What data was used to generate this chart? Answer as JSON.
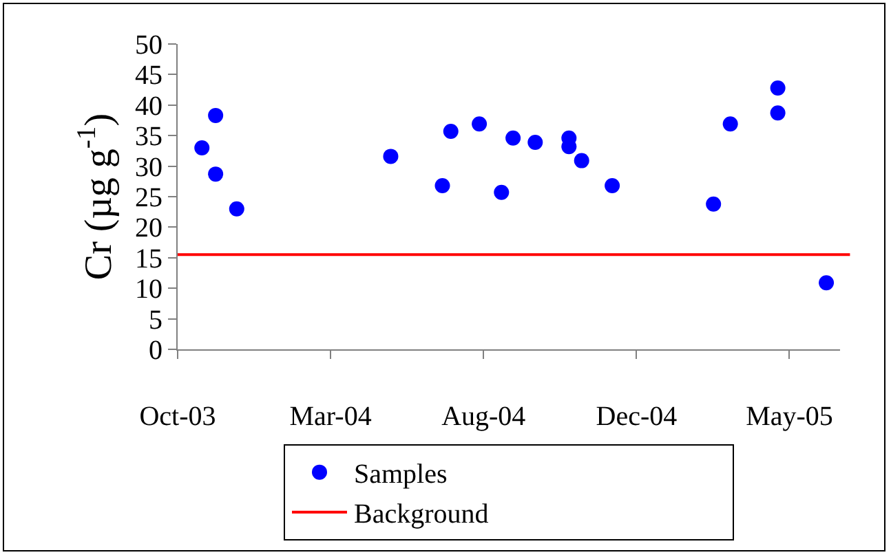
{
  "chart_data": {
    "type": "scatter",
    "ylabel": "Cr (µg g$^{-1}$)",
    "x": [
      "2003-11-12",
      "2003-11-25",
      "2003-11-25",
      "2003-12-15",
      "2004-05-09",
      "2004-06-27",
      "2004-07-05",
      "2004-08-01",
      "2004-08-22",
      "2004-09-02",
      "2004-09-23",
      "2004-10-25",
      "2004-10-25",
      "2004-11-06",
      "2004-12-05",
      "2005-03-11",
      "2005-03-27",
      "2005-05-11",
      "2005-05-11",
      "2005-06-26"
    ],
    "series": [
      {
        "name": "Samples",
        "color": "#0000ff",
        "values": [
          33,
          38.3,
          28.7,
          23,
          31.6,
          26.8,
          35.7,
          36.9,
          25.7,
          34.6,
          33.9,
          34.6,
          33.2,
          30.9,
          26.8,
          23.8,
          36.9,
          42.8,
          38.7,
          10.9
        ]
      }
    ],
    "ref_lines": [
      {
        "axis": "y",
        "value": 15.5,
        "label": "Background",
        "color": "#ff0000",
        "line_style": "solid"
      }
    ],
    "xlim": [
      "2003-10-20",
      "2005-07-09"
    ],
    "xticks": [
      {
        "value": "2003-10-20",
        "label": "Oct-03"
      },
      {
        "value": "2004-03-13",
        "label": "Mar-04"
      },
      {
        "value": "2004-08-05",
        "label": "Aug-04"
      },
      {
        "value": "2004-12-28",
        "label": "Dec-04"
      },
      {
        "value": "2005-05-22",
        "label": "May-05"
      }
    ],
    "ylim": [
      0,
      50
    ],
    "yticks": [
      0,
      5,
      10,
      15,
      20,
      25,
      30,
      35,
      40,
      45,
      50
    ],
    "grid": false,
    "legend": "bottom",
    "marker": "circle"
  }
}
